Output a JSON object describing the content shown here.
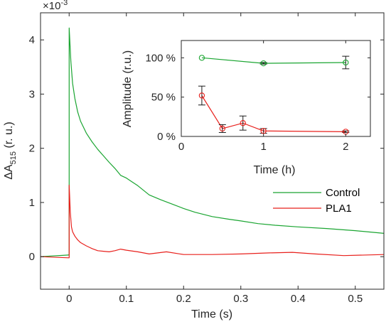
{
  "chart_data": [
    {
      "type": "line",
      "title": "",
      "xlabel": "Time (s)",
      "ylabel": "ΔA",
      "ylabel_sub": "515",
      "ylabel_suffix": " (r. u.)",
      "exponent_prefix": "×10",
      "exponent_power": "-3",
      "xlim": [
        -0.05,
        0.55
      ],
      "ylim": [
        -0.6,
        4.5
      ],
      "xticks": [
        0,
        0.1,
        0.2,
        0.3,
        0.4,
        0.5
      ],
      "xtick_labels": [
        "0",
        "0.1",
        "0.2",
        "0.3",
        "0.4",
        "0.5"
      ],
      "yticks": [
        0,
        1,
        2,
        3,
        4
      ],
      "ytick_labels": [
        "0",
        "1",
        "2",
        "3",
        "4"
      ],
      "legend_position": "right",
      "series": [
        {
          "name": "Control",
          "color": "#1aa531",
          "x": [
            -0.05,
            -0.001,
            0.0,
            0.0,
            0.003,
            0.006,
            0.01,
            0.015,
            0.02,
            0.03,
            0.04,
            0.05,
            0.06,
            0.07,
            0.08,
            0.09,
            0.1,
            0.11,
            0.12,
            0.14,
            0.16,
            0.18,
            0.2,
            0.22,
            0.25,
            0.28,
            0.3,
            0.33,
            0.36,
            0.4,
            0.45,
            0.5,
            0.55
          ],
          "y": [
            0.0,
            0.03,
            0.03,
            4.22,
            3.6,
            3.2,
            2.92,
            2.67,
            2.5,
            2.28,
            2.12,
            1.98,
            1.86,
            1.74,
            1.63,
            1.5,
            1.45,
            1.38,
            1.31,
            1.14,
            1.05,
            0.97,
            0.89,
            0.82,
            0.74,
            0.69,
            0.66,
            0.61,
            0.58,
            0.55,
            0.52,
            0.48,
            0.43
          ]
        },
        {
          "name": "PLA1",
          "color": "#e8201c",
          "x": [
            -0.05,
            -0.001,
            0.0,
            0.0,
            0.002,
            0.004,
            0.006,
            0.01,
            0.015,
            0.02,
            0.03,
            0.04,
            0.05,
            0.06,
            0.07,
            0.08,
            0.09,
            0.1,
            0.12,
            0.14,
            0.17,
            0.2,
            0.25,
            0.3,
            0.35,
            0.39,
            0.43,
            0.48,
            0.55
          ],
          "y": [
            0.0,
            -0.02,
            -0.02,
            1.32,
            0.82,
            0.55,
            0.46,
            0.38,
            0.31,
            0.26,
            0.2,
            0.15,
            0.11,
            0.1,
            0.09,
            0.11,
            0.14,
            0.12,
            0.09,
            0.05,
            0.09,
            0.04,
            0.04,
            0.05,
            0.07,
            0.08,
            0.05,
            0.02,
            0.04
          ]
        }
      ]
    },
    {
      "type": "line",
      "title": "",
      "xlabel": "Time (h)",
      "ylabel": "Amplitude (r.u.)",
      "xlim": [
        0,
        2.3
      ],
      "ylim": [
        0,
        1.22
      ],
      "xticks": [
        0,
        1,
        2
      ],
      "xtick_labels": [
        "0",
        "1",
        "2"
      ],
      "yticks": [
        0,
        0.5,
        1.0
      ],
      "ytick_labels": [
        "0 %",
        "50 %",
        "100 %"
      ],
      "series": [
        {
          "color": "#1aa531",
          "x": [
            0.25,
            1.0,
            2.0
          ],
          "y": [
            1.0,
            0.93,
            0.94
          ],
          "err": [
            0.0,
            0.01,
            0.08
          ]
        },
        {
          "color": "#e8201c",
          "x": [
            0.25,
            0.5,
            0.75,
            1.0,
            2.0
          ],
          "y": [
            0.52,
            0.1,
            0.17,
            0.07,
            0.06
          ],
          "err": [
            0.12,
            0.05,
            0.09,
            0.03,
            0.01
          ]
        }
      ]
    }
  ]
}
